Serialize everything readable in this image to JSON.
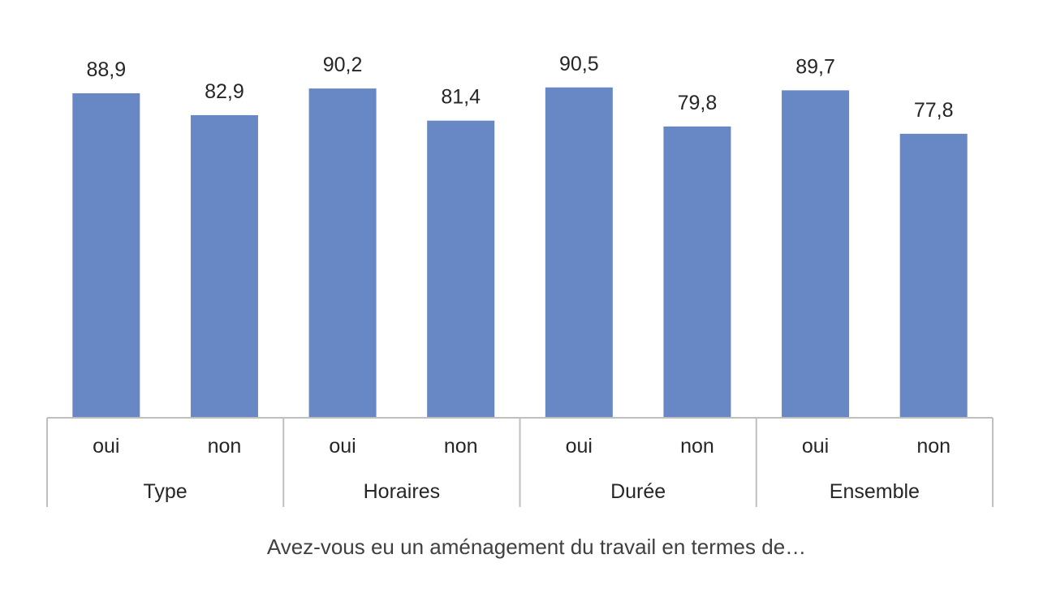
{
  "chart_data": {
    "type": "bar",
    "groups": [
      "Type",
      "Horaires",
      "Durée",
      "Ensemble"
    ],
    "subcategories": [
      "oui",
      "non"
    ],
    "categories": [
      "oui",
      "non",
      "oui",
      "non",
      "oui",
      "non",
      "oui",
      "non"
    ],
    "values": [
      88.9,
      82.9,
      90.2,
      81.4,
      90.5,
      79.8,
      89.7,
      77.8
    ],
    "value_labels": [
      "88,9",
      "82,9",
      "90,2",
      "81,4",
      "90,5",
      "79,8",
      "89,7",
      "77,8"
    ],
    "xlabel": "Avez-vous eu un aménagement du travail en termes de…",
    "ylabel": "",
    "ylim": [
      0,
      100
    ],
    "grid": false,
    "bar_color": "#6787C5",
    "axis_color": "#BFBFBF"
  }
}
